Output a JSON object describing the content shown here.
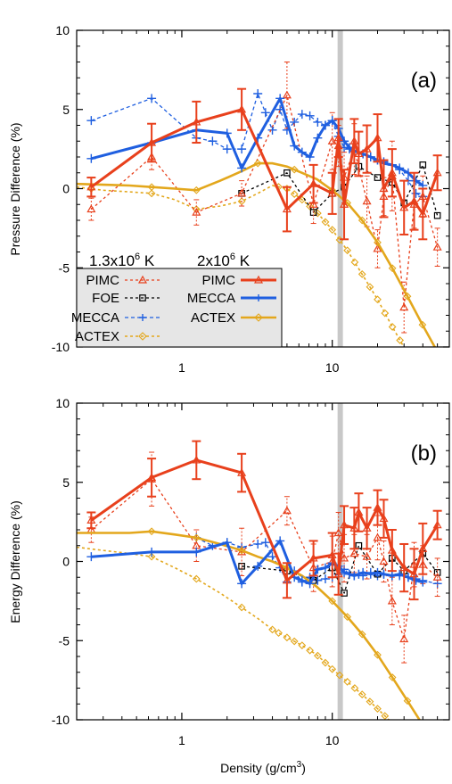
{
  "figure": {
    "xlabel_main": "Density (g/cm",
    "xlabel_sup": "3",
    "xlabel_end": ")"
  },
  "colors": {
    "pimc": "#e8401c",
    "foe": "#000000",
    "mecca": "#1f5fe0",
    "actex": "#e3a71c",
    "vline": "#c8c8c8",
    "legend_bg": "#e6e6e6"
  },
  "legend": {
    "header_low_base": "1.3x10",
    "header_low_exp": "6",
    "header_low_unit": " K",
    "header_high_base": "2x10",
    "header_high_exp": "6",
    "header_high_unit": " K",
    "rows_low": [
      "PIMC",
      "FOE",
      "MECCA",
      "ACTEX"
    ],
    "rows_high": [
      "PIMC",
      "MECCA",
      "ACTEX"
    ]
  },
  "chart_data": [
    {
      "type": "line",
      "panel_label": "(a)",
      "ylabel": "Pressure Difference (%)",
      "x_scale": "log",
      "xlim": [
        0.2,
        60
      ],
      "ylim": [
        -10,
        10
      ],
      "x_ticks": [
        1,
        10
      ],
      "x_tick_labels": [
        "1",
        "10"
      ],
      "y_ticks": [
        -10,
        -5,
        0,
        5,
        10
      ],
      "y_tick_labels": [
        "-10",
        "-5",
        "0",
        "5",
        "10"
      ],
      "vline_x": 11.3,
      "series": [
        {
          "key": "pimc_low",
          "temp": "low",
          "method": "pimc",
          "x": [
            0.25,
            0.63,
            1.25,
            2.5,
            5,
            7.5,
            10,
            11,
            12,
            14,
            17,
            20,
            22,
            25,
            30,
            35,
            40,
            50
          ],
          "y": [
            -1.3,
            2.0,
            -1.5,
            -0.3,
            5.9,
            -1.0,
            3.0,
            2.7,
            0.7,
            2.5,
            -0.8,
            -3.8,
            -0.5,
            0.8,
            -7.5,
            -1.0,
            -0.5,
            -3.7
          ],
          "err": [
            0.7,
            0.8,
            0.8,
            0.8,
            2.1,
            1.2,
            1.8,
            1.3,
            1.6,
            1.6,
            1.6,
            1.2,
            1.2,
            2.2,
            1.6,
            1.5,
            1.3,
            1.2
          ]
        },
        {
          "key": "pimc_high",
          "temp": "high",
          "method": "pimc",
          "x": [
            0.25,
            0.63,
            1.25,
            2.5,
            5,
            7.5,
            10,
            11,
            12,
            14,
            15,
            17,
            20,
            22,
            25,
            30,
            35,
            40,
            50
          ],
          "y": [
            0.1,
            2.9,
            4.2,
            5.0,
            -1.3,
            0.3,
            -0.3,
            3.2,
            -1.0,
            3.0,
            2.2,
            2.5,
            3.2,
            0.0,
            1.0,
            -1.2,
            -0.8,
            -1.6,
            1.0
          ],
          "err": [
            0.6,
            1.2,
            1.3,
            1.3,
            1.4,
            1.2,
            1.3,
            1.2,
            2.2,
            1.4,
            1.4,
            1.5,
            1.5,
            1.8,
            1.5,
            1.7,
            1.8,
            1.6,
            1.1
          ]
        },
        {
          "key": "foe_low",
          "temp": "low",
          "method": "foe",
          "x": [
            2.5,
            5,
            7.5,
            10,
            12,
            15,
            20,
            25,
            30,
            40,
            50
          ],
          "y": [
            -0.3,
            1.0,
            -1.5,
            -0.3,
            0.1,
            1.4,
            0.7,
            0.4,
            -0.9,
            1.5,
            -1.7
          ]
        },
        {
          "key": "mecca_low",
          "temp": "low",
          "method": "mecca",
          "x": [
            0.25,
            0.63,
            1.25,
            1.6,
            2.0,
            2.5,
            3.2,
            3.6,
            4.0,
            4.5,
            5,
            5.6,
            6.3,
            7.1,
            8,
            9,
            10,
            11,
            12,
            13,
            14,
            15,
            16,
            18,
            20,
            22,
            25,
            28,
            32,
            36,
            40
          ],
          "y": [
            4.3,
            5.7,
            3.2,
            3.0,
            2.5,
            2.5,
            6.0,
            4.8,
            3.7,
            5.0,
            3.7,
            4.2,
            4.7,
            4.6,
            4.2,
            4.0,
            4.3,
            3.3,
            2.6,
            2.5,
            2.4,
            2.3,
            2.2,
            2.0,
            1.8,
            1.7,
            1.5,
            1.2,
            0.5,
            -0.3,
            -0.5
          ]
        },
        {
          "key": "mecca_high",
          "temp": "high",
          "method": "mecca",
          "x": [
            0.25,
            0.63,
            1.25,
            2.0,
            2.5,
            3.2,
            4.5,
            5.6,
            6.3,
            7.1,
            8,
            9,
            10,
            11,
            12,
            13,
            14,
            15,
            16,
            18,
            20,
            22,
            25,
            28,
            32,
            36,
            40
          ],
          "y": [
            1.9,
            2.9,
            3.7,
            3.5,
            1.3,
            3.2,
            5.7,
            2.7,
            2.3,
            2.0,
            3.2,
            4.0,
            4.3,
            3.8,
            3.0,
            2.6,
            2.4,
            2.3,
            2.2,
            2.0,
            1.8,
            1.6,
            1.5,
            1.3,
            1.0,
            0.5,
            0.2
          ]
        },
        {
          "key": "actex_low",
          "temp": "low",
          "method": "actex",
          "markers_x": [
            0.25,
            0.63,
            1.25,
            2.5,
            4.4,
            5.0,
            5.6,
            6.3,
            7.1,
            8.0,
            9.0,
            10.0,
            11.2,
            12.6,
            14.1,
            15.8,
            17.8,
            20.0,
            22.4,
            25.1,
            28.2,
            31.6,
            35.5,
            39.8
          ],
          "curve_x": [
            0.2,
            0.3,
            0.45,
            0.63,
            0.9,
            1.25,
            1.8,
            2.5,
            3.2,
            4.0,
            5.0,
            6.3,
            7.9,
            10,
            12.6,
            15.8,
            20,
            25,
            31.6,
            39.8,
            50,
            60
          ],
          "curve_y": [
            0.1,
            -0.1,
            -0.2,
            -0.3,
            -0.7,
            -1.3,
            -1.1,
            -0.8,
            -0.3,
            0.2,
            0.0,
            -0.7,
            -1.5,
            -2.6,
            -3.9,
            -5.4,
            -7.0,
            -8.7,
            -10.4,
            -12.2,
            -14.1,
            -16.0
          ]
        },
        {
          "key": "actex_high",
          "temp": "high",
          "method": "actex",
          "markers_x": [
            0.63,
            1.25,
            3.2,
            5.6,
            10,
            12.6,
            15.8,
            20,
            25.1,
            31.6,
            39.8,
            50.1
          ],
          "curve_x": [
            0.2,
            0.3,
            0.45,
            0.63,
            0.9,
            1.25,
            1.8,
            2.5,
            3.2,
            4.0,
            5.0,
            6.3,
            7.9,
            10,
            12.6,
            15.8,
            20,
            25,
            31.6,
            39.8,
            50,
            60
          ],
          "curve_y": [
            0.3,
            0.25,
            0.2,
            0.1,
            0.0,
            -0.1,
            0.5,
            1.1,
            1.6,
            1.6,
            1.4,
            1.0,
            0.6,
            -0.1,
            -0.9,
            -2.0,
            -3.4,
            -5.0,
            -6.8,
            -8.6,
            -10.3,
            -11.8
          ]
        }
      ]
    },
    {
      "type": "line",
      "panel_label": "(b)",
      "ylabel": "Energy Difference (%)",
      "x_scale": "log",
      "xlim": [
        0.2,
        60
      ],
      "ylim": [
        -10,
        10
      ],
      "x_ticks": [
        1,
        10
      ],
      "x_tick_labels": [
        "1",
        "10"
      ],
      "y_ticks": [
        -10,
        -5,
        0,
        5,
        10
      ],
      "y_tick_labels": [
        "-10",
        "-5",
        "0",
        "5",
        "10"
      ],
      "vline_x": 11.3,
      "series": [
        {
          "key": "pimc_low",
          "temp": "low",
          "method": "pimc",
          "x": [
            0.25,
            0.63,
            1.25,
            2.5,
            5,
            7.5,
            10,
            11,
            12,
            14,
            17,
            20,
            22,
            25,
            30,
            35,
            40,
            50
          ],
          "y": [
            2.0,
            5.2,
            1.0,
            0.6,
            3.2,
            -0.4,
            0.0,
            1.8,
            0.2,
            0.5,
            0.3,
            1.5,
            0.0,
            -2.5,
            -4.9,
            -0.2,
            -0.2,
            -1.0
          ],
          "err": [
            0.8,
            1.7,
            1.0,
            1.5,
            0.9,
            1.5,
            1.6,
            1.3,
            1.5,
            1.2,
            1.4,
            1.4,
            1.3,
            1.5,
            1.5,
            1.4,
            1.2,
            1.2
          ]
        },
        {
          "key": "pimc_high",
          "temp": "high",
          "method": "pimc",
          "x": [
            0.25,
            0.63,
            1.25,
            2.5,
            5,
            7.5,
            10,
            11,
            12,
            14,
            15,
            17,
            20,
            22,
            25,
            30,
            35,
            40,
            50
          ],
          "y": [
            2.6,
            5.3,
            6.4,
            5.6,
            -1.2,
            0.2,
            0.4,
            -0.8,
            2.3,
            2.1,
            3.1,
            2.1,
            3.4,
            2.7,
            0.7,
            -0.4,
            -0.8,
            0.8,
            2.3
          ],
          "err": [
            0.5,
            1.2,
            1.2,
            1.2,
            1.1,
            1.1,
            1.4,
            1.3,
            1.2,
            1.3,
            1.2,
            1.3,
            1.1,
            1.2,
            1.3,
            1.5,
            1.6,
            1.6,
            0.9
          ]
        },
        {
          "key": "foe_low",
          "temp": "low",
          "method": "foe",
          "x": [
            2.5,
            5,
            7.5,
            10,
            12,
            15,
            20,
            25,
            30,
            40,
            50
          ],
          "y": [
            -0.3,
            -0.6,
            -1.2,
            -0.4,
            -2.0,
            1.0,
            -0.8,
            0.2,
            -0.6,
            0.5,
            -0.7
          ]
        },
        {
          "key": "mecca_low",
          "temp": "low",
          "method": "mecca",
          "x": [
            1.25,
            1.6,
            2.0,
            2.5,
            3.2,
            3.6,
            4.0,
            4.5,
            5,
            5.6,
            6.3,
            7.1,
            8,
            9,
            10,
            11,
            12,
            13,
            14,
            15,
            16,
            18,
            20,
            22,
            25,
            28,
            32,
            36,
            40,
            50
          ],
          "y": [
            1.5,
            1.0,
            1.2,
            0.9,
            1.1,
            1.2,
            0.3,
            -0.4,
            -1.3,
            -0.6,
            -1.3,
            -1.0,
            -1.2,
            -1.1,
            -1.0,
            -0.8,
            -0.5,
            -0.8,
            -0.9,
            -0.8,
            -0.9,
            -0.7,
            -0.9,
            -0.8,
            -0.9,
            -0.9,
            -1.0,
            -1.1,
            -1.2,
            -1.4
          ]
        },
        {
          "key": "mecca_high",
          "temp": "high",
          "method": "mecca",
          "x": [
            0.25,
            0.63,
            1.25,
            2.0,
            2.5,
            3.2,
            4.5,
            5.6,
            6.3,
            7.1,
            8,
            9,
            10,
            11,
            12,
            13,
            14,
            15,
            16,
            18,
            20,
            22,
            25,
            28,
            32,
            36,
            40
          ],
          "y": [
            0.3,
            0.6,
            0.6,
            1.2,
            -1.4,
            -0.3,
            1.3,
            -1.0,
            -1.2,
            -1.4,
            -0.5,
            -0.4,
            -0.1,
            -0.3,
            -0.7,
            -0.8,
            -0.9,
            -0.8,
            -0.7,
            -0.8,
            -0.7,
            -0.8,
            -0.9,
            -0.8,
            -1.0,
            -1.2,
            -1.3
          ]
        },
        {
          "key": "actex_low",
          "temp": "low",
          "method": "actex",
          "markers_x": [
            0.63,
            1.25,
            2.5,
            4.0,
            4.4,
            5.0,
            5.6,
            6.3,
            7.1,
            8.0,
            9.0,
            10.0,
            11.2,
            12.6,
            14.1,
            15.8,
            17.8,
            20.0,
            22.4,
            25.1,
            28.2
          ],
          "curve_x": [
            0.2,
            0.3,
            0.45,
            0.63,
            0.9,
            1.25,
            1.8,
            2.5,
            3.2,
            4.0,
            5.0,
            6.3,
            7.9,
            10,
            12.6,
            15.8,
            20,
            25,
            31.6,
            39.8,
            50,
            60
          ],
          "curve_y": [
            0.9,
            0.7,
            0.5,
            0.3,
            -0.4,
            -1.1,
            -2.0,
            -2.9,
            -3.6,
            -4.3,
            -4.8,
            -5.3,
            -5.9,
            -6.8,
            -7.6,
            -8.4,
            -9.3,
            -10.2,
            -11.2,
            -12.2,
            -13.2,
            -14.0
          ]
        },
        {
          "key": "actex_high",
          "temp": "high",
          "method": "actex",
          "markers_x": [
            0.63,
            1.25,
            2.5,
            5.0,
            10,
            12.6,
            15.8,
            20,
            25.1,
            31.6,
            39.8
          ],
          "curve_x": [
            0.2,
            0.3,
            0.45,
            0.63,
            0.9,
            1.25,
            1.8,
            2.5,
            3.2,
            4.0,
            5.0,
            6.3,
            7.9,
            10,
            12.6,
            15.8,
            20,
            25,
            31.6,
            39.8,
            50,
            60
          ],
          "curve_y": [
            1.8,
            1.8,
            1.8,
            1.9,
            1.7,
            1.5,
            1.1,
            0.7,
            0.3,
            0.0,
            -0.4,
            -0.9,
            -1.6,
            -2.5,
            -3.5,
            -4.6,
            -5.9,
            -7.3,
            -8.8,
            -10.3,
            -11.7,
            -13.0
          ]
        }
      ]
    }
  ]
}
